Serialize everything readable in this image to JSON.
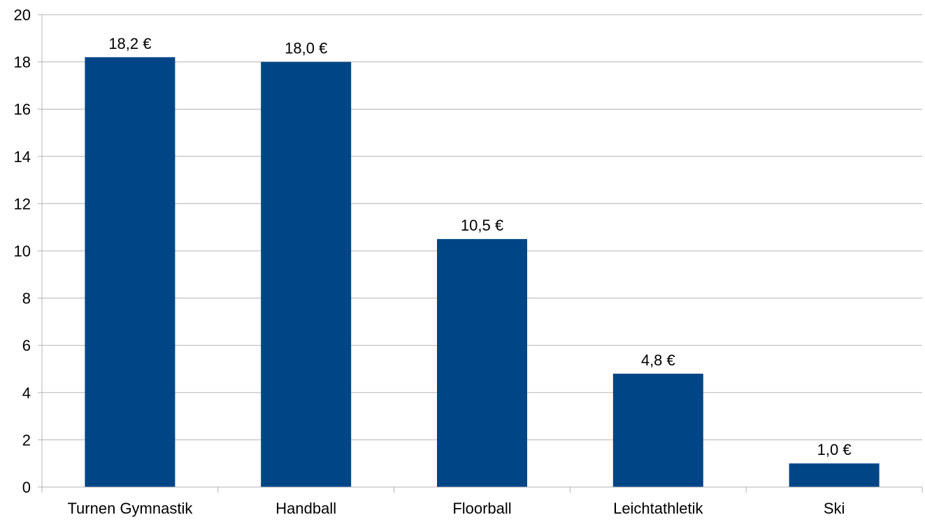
{
  "chart_data": {
    "type": "bar",
    "title": "",
    "xlabel": "",
    "ylabel": "",
    "categories": [
      "Turnen Gymnastik",
      "Handball",
      "Floorball",
      "Leichtathletik",
      "Ski"
    ],
    "values": [
      18.2,
      18.0,
      10.5,
      4.8,
      1.0
    ],
    "data_labels": [
      "18,2 €",
      "18,0 €",
      "10,5 €",
      "4,8 €",
      "1,0 €"
    ],
    "y_ticks": [
      "0",
      "2",
      "4",
      "6",
      "8",
      "10",
      "12",
      "14",
      "16",
      "18",
      "20"
    ],
    "ylim": [
      0,
      20
    ],
    "grid": true,
    "legend": "none",
    "colors": {
      "bar": "#004586",
      "grid": "#b3b3b3",
      "axis": "#b3b3b3",
      "text": "#000000"
    }
  }
}
